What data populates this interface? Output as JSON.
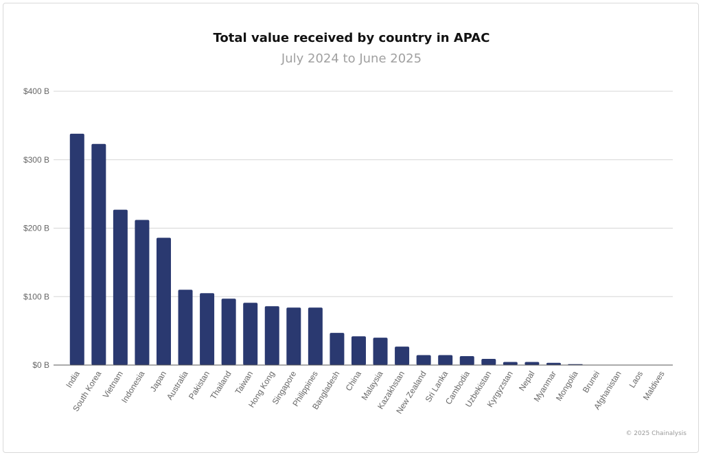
{
  "chart_data": {
    "type": "bar",
    "title": "Total value received by country in APAC",
    "subtitle": "July 2024 to June 2025",
    "xlabel": "",
    "ylabel": "",
    "ylim": [
      0,
      400
    ],
    "yticks": [
      0,
      100,
      200,
      300,
      400
    ],
    "ytick_labels": [
      "$0 B",
      "$100 B",
      "$200 B",
      "$300 B",
      "$400 B"
    ],
    "grid": true,
    "bar_color": "#2a3970",
    "categories": [
      "India",
      "South Korea",
      "Vietnam",
      "Indonesia",
      "Japan",
      "Australia",
      "Pakistan",
      "Thailand",
      "Taiwan",
      "Hong Kong",
      "Singapore",
      "Philippines",
      "Bangladesh",
      "China",
      "Malaysia",
      "Kazakhstan",
      "New Zealand",
      "Sri Lanka",
      "Cambodia",
      "Uzbekistan",
      "Kyrgyzstan",
      "Nepal",
      "Myanmar",
      "Mongolia",
      "Brunei",
      "Afghanistan",
      "Laos",
      "Maldives"
    ],
    "values": [
      338,
      323,
      227,
      212,
      186,
      110,
      105,
      97,
      91,
      86,
      84,
      84,
      47,
      42,
      40,
      27,
      14.5,
      14.5,
      13,
      9,
      4.5,
      4.5,
      3.3,
      1.3,
      0.1,
      0.1,
      0.05,
      0.05
    ]
  },
  "footer": {
    "credit": "© 2025 Chainalysis"
  }
}
